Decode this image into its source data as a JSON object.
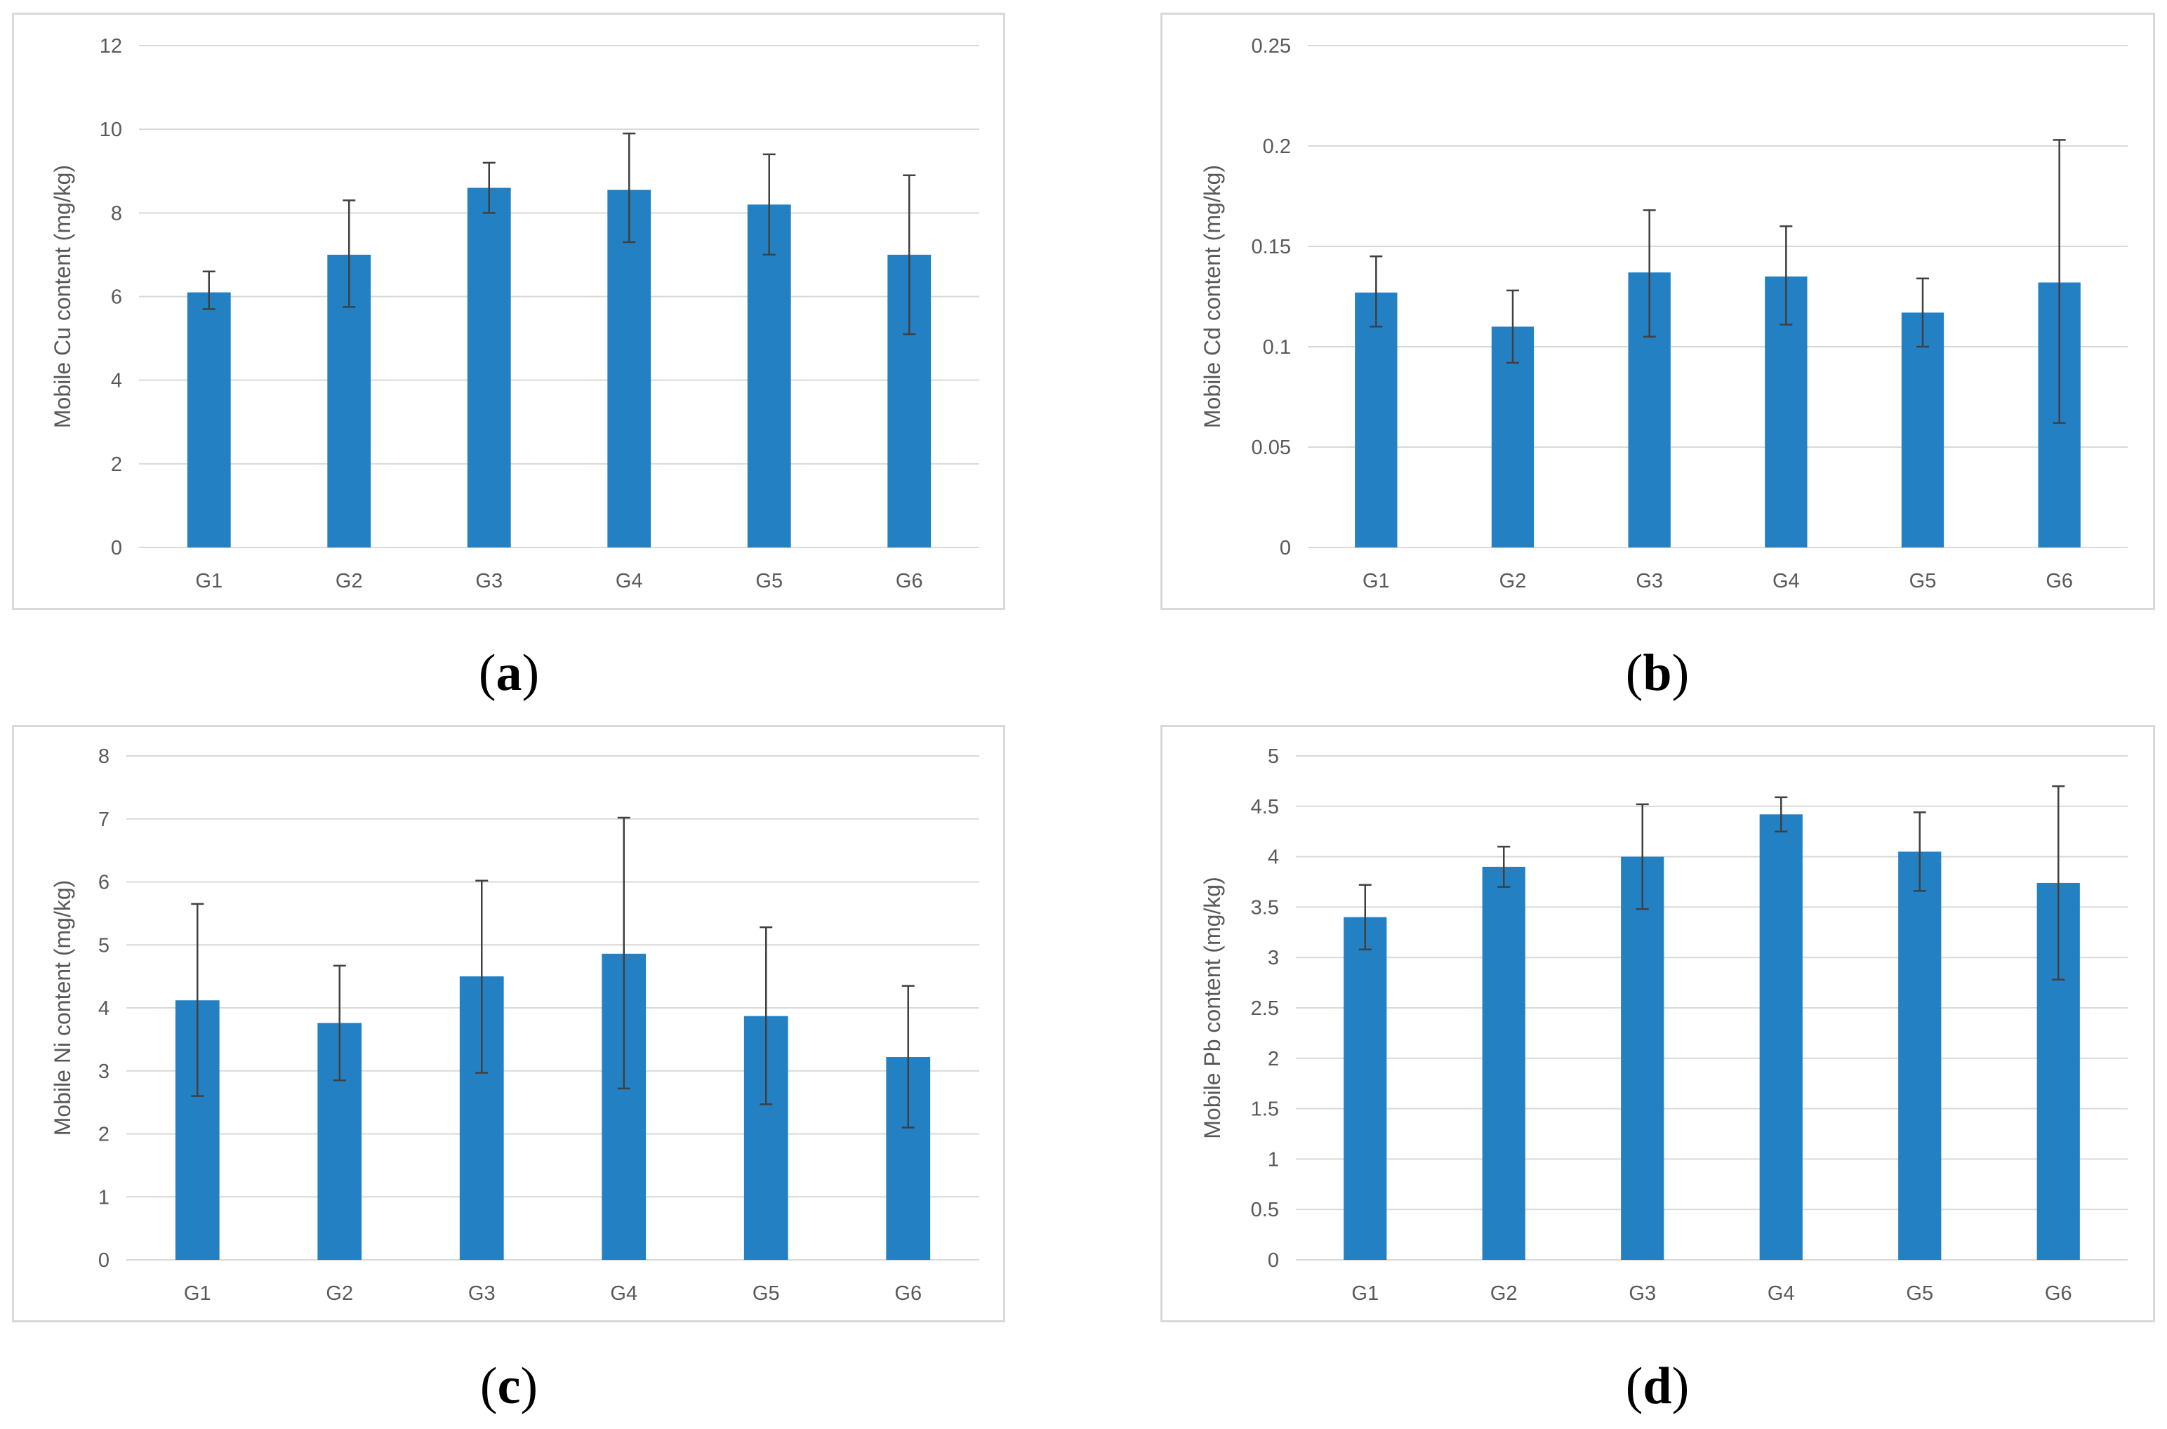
{
  "colors": {
    "bar": "#2381c3",
    "error_bar": "#404040",
    "grid": "#d9d9d9",
    "tick_text": "#595959",
    "frame": "#d9d9d9"
  },
  "chart_data": [
    {
      "id": "a",
      "type": "bar",
      "caption_letter": "a",
      "title": "",
      "xlabel": "",
      "ylabel": "Mobile Cu content (mg/kg)",
      "categories": [
        "G1",
        "G2",
        "G3",
        "G4",
        "G5",
        "G6"
      ],
      "values": [
        6.1,
        7.0,
        8.6,
        8.55,
        8.2,
        7.0
      ],
      "error_low": [
        5.7,
        5.75,
        8.0,
        7.3,
        7.0,
        5.1
      ],
      "error_high": [
        6.6,
        8.3,
        9.2,
        9.9,
        9.4,
        8.9
      ],
      "ylim": [
        0,
        12
      ],
      "yticks": [
        0,
        2,
        4,
        6,
        8,
        10,
        12
      ],
      "ytick_labels": [
        "0",
        "2",
        "4",
        "6",
        "8",
        "10",
        "12"
      ],
      "grid": true,
      "legend": "none"
    },
    {
      "id": "b",
      "type": "bar",
      "caption_letter": "b",
      "title": "",
      "xlabel": "",
      "ylabel": "Mobile Cd content (mg/kg)",
      "categories": [
        "G1",
        "G2",
        "G3",
        "G4",
        "G5",
        "G6"
      ],
      "values": [
        0.127,
        0.11,
        0.137,
        0.135,
        0.117,
        0.132
      ],
      "error_low": [
        0.11,
        0.092,
        0.105,
        0.111,
        0.1,
        0.062
      ],
      "error_high": [
        0.145,
        0.128,
        0.168,
        0.16,
        0.134,
        0.203
      ],
      "ylim": [
        0,
        0.25
      ],
      "yticks": [
        0,
        0.05,
        0.1,
        0.15,
        0.2,
        0.25
      ],
      "ytick_labels": [
        "0",
        "0.05",
        "0.1",
        "0.15",
        "0.2",
        "0.25"
      ],
      "grid": true,
      "legend": "none"
    },
    {
      "id": "c",
      "type": "bar",
      "caption_letter": "c",
      "title": "",
      "xlabel": "",
      "ylabel": "Mobile Ni content (mg/kg)",
      "categories": [
        "G1",
        "G2",
        "G3",
        "G4",
        "G5",
        "G6"
      ],
      "values": [
        4.12,
        3.76,
        4.5,
        4.86,
        3.87,
        3.22
      ],
      "error_low": [
        2.6,
        2.85,
        2.97,
        2.72,
        2.47,
        2.1
      ],
      "error_high": [
        5.65,
        4.67,
        6.02,
        7.02,
        5.28,
        4.35
      ],
      "ylim": [
        0,
        8
      ],
      "yticks": [
        0,
        1,
        2,
        3,
        4,
        5,
        6,
        7,
        8
      ],
      "ytick_labels": [
        "0",
        "1",
        "2",
        "3",
        "4",
        "5",
        "6",
        "7",
        "8"
      ],
      "grid": true,
      "legend": "none"
    },
    {
      "id": "d",
      "type": "bar",
      "caption_letter": "d",
      "title": "",
      "xlabel": "",
      "ylabel": "Mobile Pb content (mg/kg)",
      "categories": [
        "G1",
        "G2",
        "G3",
        "G4",
        "G5",
        "G6"
      ],
      "values": [
        3.4,
        3.9,
        4.0,
        4.42,
        4.05,
        3.74
      ],
      "error_low": [
        3.08,
        3.7,
        3.48,
        4.25,
        3.66,
        2.78
      ],
      "error_high": [
        3.72,
        4.1,
        4.52,
        4.59,
        4.44,
        4.7
      ],
      "ylim": [
        0,
        5
      ],
      "yticks": [
        0,
        0.5,
        1,
        1.5,
        2,
        2.5,
        3,
        3.5,
        4,
        4.5,
        5
      ],
      "ytick_labels": [
        "0",
        "0.5",
        "1",
        "1.5",
        "2",
        "2.5",
        "3",
        "3.5",
        "4",
        "4.5",
        "5"
      ],
      "grid": true,
      "legend": "none"
    }
  ]
}
